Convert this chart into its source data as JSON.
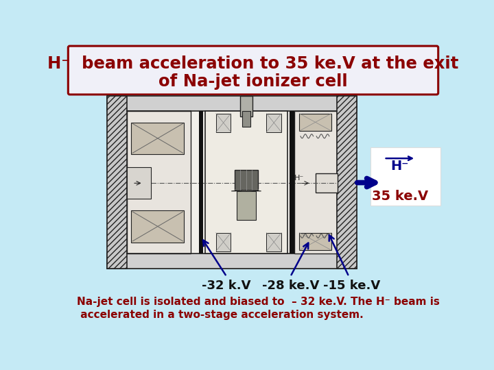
{
  "bg_color": "#c5eaf5",
  "title_line1": "H⁻  beam acceleration to 35 ke.V at the exit",
  "title_line2": "of Na-jet ionizer cell",
  "title_color": "#8b0000",
  "title_box_bg": "#f0f0f8",
  "title_box_edge": "#8b0000",
  "body_text_line1": "Na-jet cell is isolated and biased to  – 32 ke.V. The H⁻ beam is",
  "body_text_line2": " accelerated in a two-stage acceleration system.",
  "body_color": "#8b0000",
  "label_32kv": "-32 k.V",
  "label_28kev": "-28 ke.V",
  "label_15kev": "-15 ke.V",
  "label_hminus": "H⁻",
  "label_35kev": "35 ke.V",
  "arrow_color": "#00008b",
  "draw_color": "#222222",
  "image_bg": "#f5f5f0"
}
